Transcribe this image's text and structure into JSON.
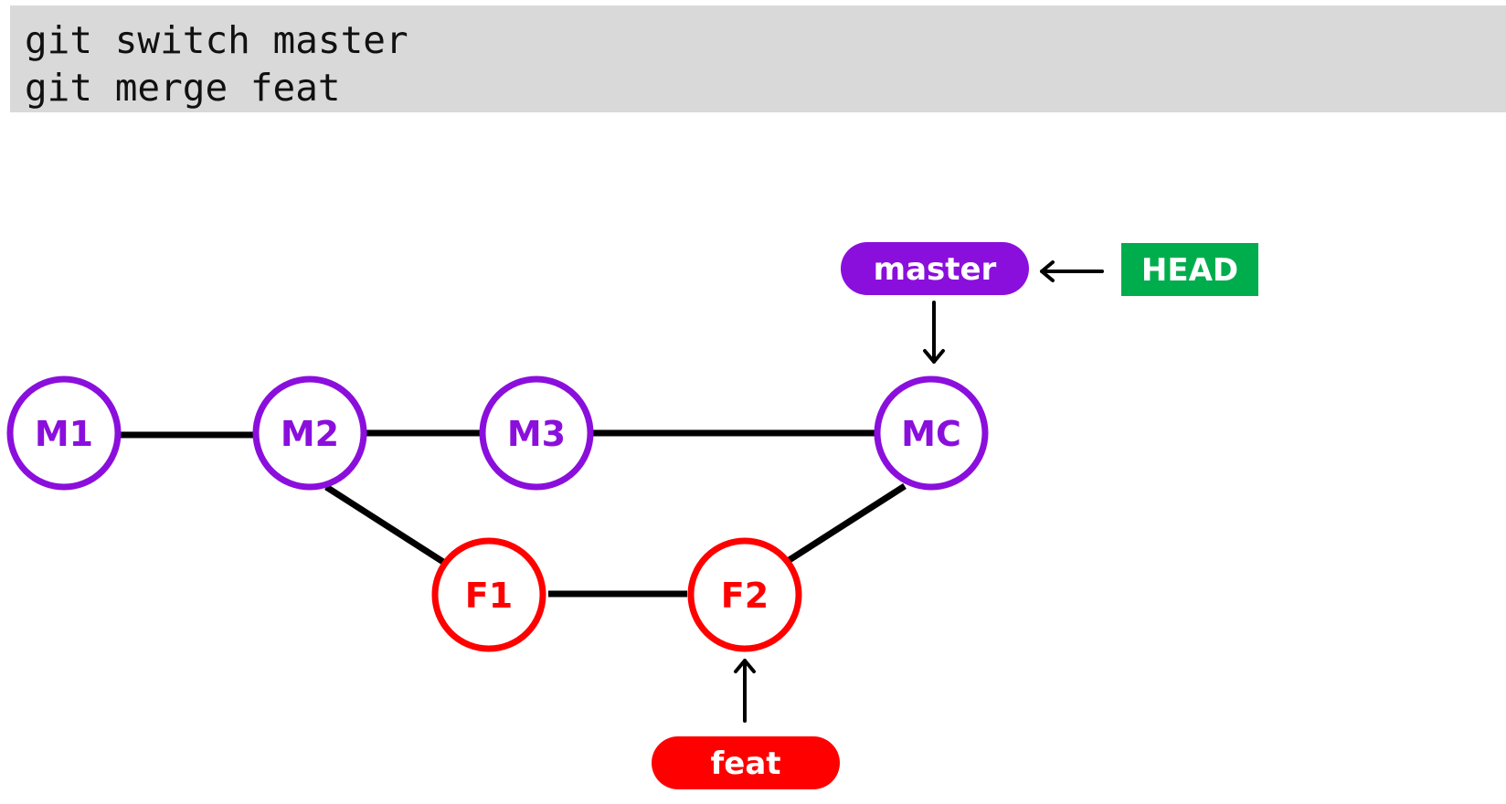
{
  "commands": [
    "git switch master",
    "git merge feat"
  ],
  "colors": {
    "master": "#8b0fdc",
    "feat": "#ff0000",
    "head": "#00ad4d",
    "edge": "#000000",
    "code_bg": "#d9d9d9"
  },
  "commits": {
    "m1": "M1",
    "m2": "M2",
    "m3": "M3",
    "mc": "MC",
    "f1": "F1",
    "f2": "F2"
  },
  "refs": {
    "master": "master",
    "feat": "feat",
    "head": "HEAD"
  }
}
